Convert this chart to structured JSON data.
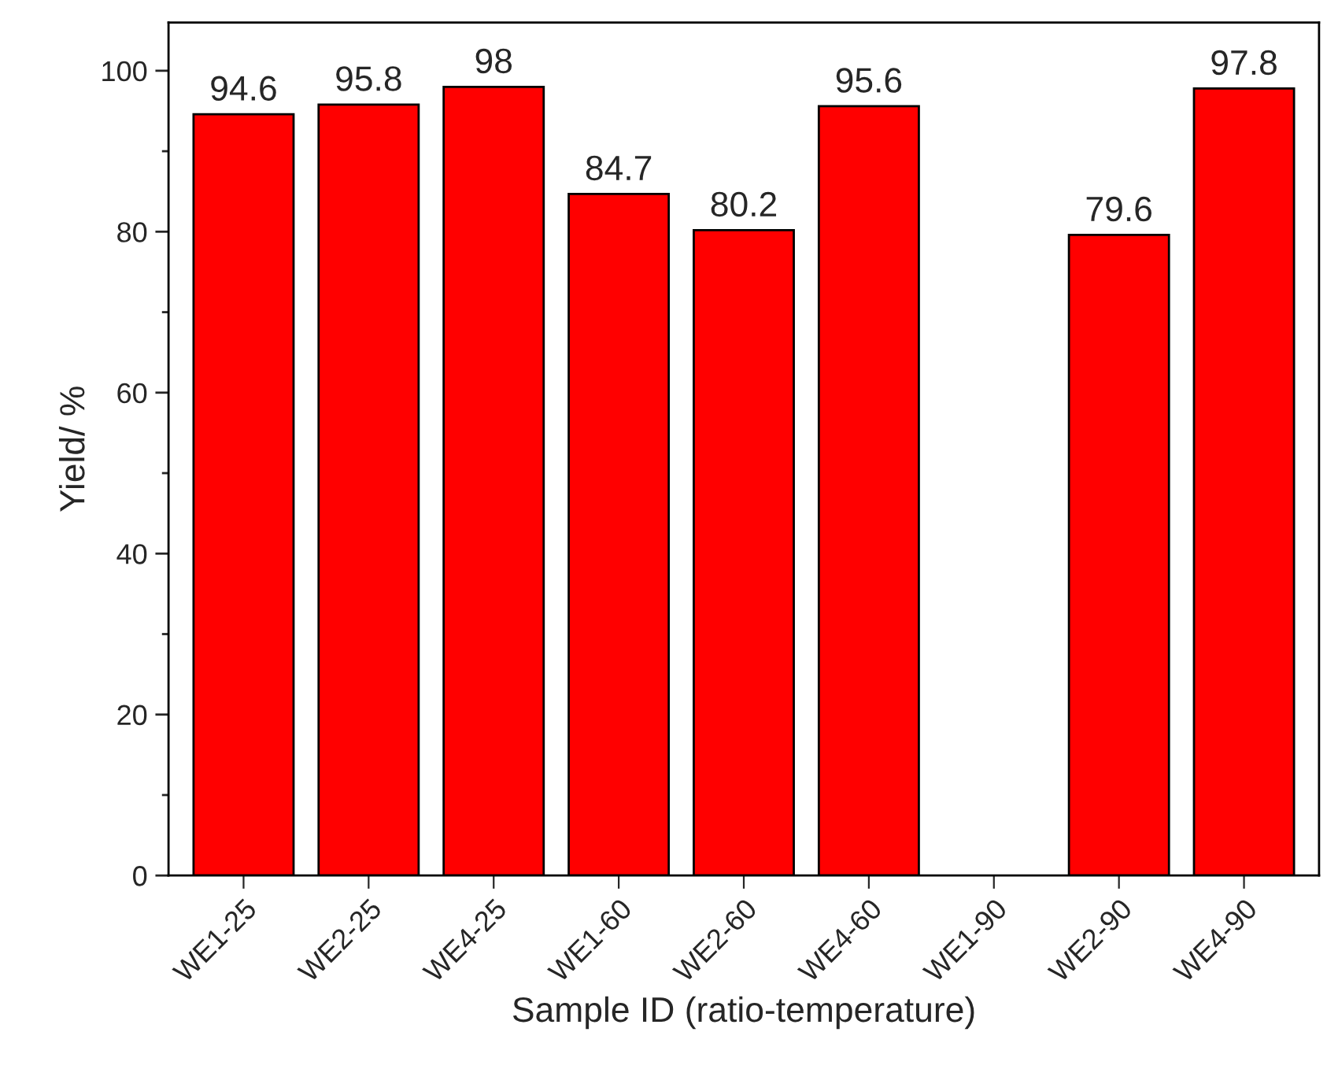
{
  "chart_data": {
    "type": "bar",
    "xlabel": "Sample ID (ratio-temperature)",
    "ylabel": "Yield/ %",
    "categories": [
      "WE1-25",
      "WE2-25",
      "WE4-25",
      "WE1-60",
      "WE2-60",
      "WE4-60",
      "WE1-90",
      "WE2-90",
      "WE4-90"
    ],
    "values": [
      94.6,
      95.8,
      98,
      84.7,
      80.2,
      95.6,
      null,
      79.6,
      97.8
    ],
    "color": "#ff0000",
    "data_labels": true,
    "ylim": [
      0,
      106
    ],
    "yticks": [
      0,
      {
        "value": 10,
        "label": null
      },
      20,
      {
        "value": 30,
        "label": null
      },
      40,
      {
        "value": 50,
        "label": null
      },
      60,
      {
        "value": 70,
        "label": null
      },
      80,
      {
        "value": 90,
        "label": null
      },
      100
    ],
    "grid": false,
    "legend": false
  }
}
